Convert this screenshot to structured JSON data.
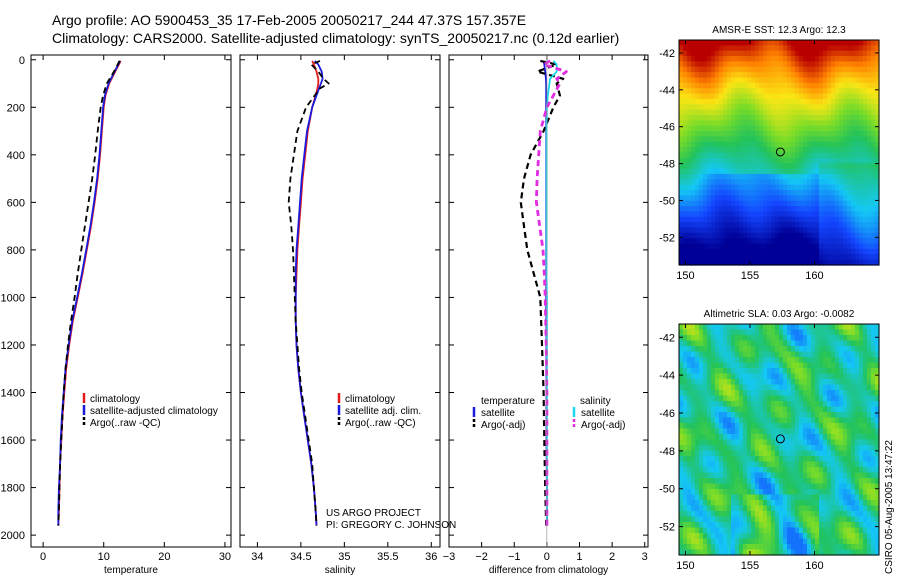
{
  "header": {
    "line1": "Argo profile: AO 5900453_35 17-Feb-2005 20050217_244 47.37S 157.357E",
    "line2": "Climatology: CARS2000. Satellite-adjusted climatology: synTS_20050217.nc (0.12d earlier)"
  },
  "colors": {
    "climatology": "#e41a1c",
    "satellite": "#1a1adc",
    "argo": "#000000",
    "salinity_satellite": "#19d8ee",
    "salinity_argo": "#e12ce1"
  },
  "chart_data": [
    {
      "type": "line",
      "id": "temperature",
      "xlabel": "temperature",
      "ylabel": "",
      "xlim": [
        -2,
        31
      ],
      "ylim": [
        2050,
        -20
      ],
      "xticks": [
        "0",
        "10",
        "20",
        "30"
      ],
      "yticks": [
        "0",
        "200",
        "400",
        "600",
        "800",
        "1000",
        "1200",
        "1400",
        "1600",
        "1800",
        "2000"
      ],
      "depth": [
        5,
        20,
        50,
        100,
        150,
        200,
        300,
        400,
        500,
        600,
        700,
        800,
        900,
        1000,
        1100,
        1200,
        1300,
        1400,
        1500,
        1600,
        1700,
        1800,
        1900,
        1960
      ],
      "series": [
        {
          "name": "climatology",
          "values": [
            12.8,
            12.5,
            11.9,
            10.9,
            10.3,
            10.0,
            9.7,
            9.4,
            9.0,
            8.5,
            7.9,
            7.2,
            6.5,
            5.7,
            4.9,
            4.3,
            3.8,
            3.5,
            3.2,
            3.0,
            2.8,
            2.7,
            2.6,
            2.5
          ]
        },
        {
          "name": "satellite-adjusted climatology",
          "values": [
            12.7,
            12.4,
            11.8,
            10.8,
            10.2,
            9.9,
            9.6,
            9.3,
            8.9,
            8.4,
            7.8,
            7.1,
            6.4,
            5.6,
            4.8,
            4.2,
            3.7,
            3.4,
            3.1,
            2.9,
            2.8,
            2.6,
            2.5,
            2.5
          ]
        },
        {
          "name": "Argo(..raw -QC)",
          "values": [
            12.6,
            12.3,
            11.7,
            10.5,
            9.9,
            9.5,
            9.0,
            8.6,
            8.1,
            7.5,
            6.9,
            6.3,
            5.7,
            5.2,
            4.6,
            4.1,
            3.7,
            3.4,
            3.2,
            3.0,
            2.8,
            2.7,
            2.6,
            2.5
          ]
        }
      ],
      "legend": [
        "climatology",
        "satellite-adjusted climatology",
        "Argo(..raw -QC)"
      ]
    },
    {
      "type": "line",
      "id": "salinity",
      "xlabel": "salinity",
      "xlim": [
        33.8,
        36.1
      ],
      "ylim": [
        2050,
        -20
      ],
      "xticks": [
        "34",
        "34.5",
        "35",
        "35.5",
        "36"
      ],
      "depth": [
        5,
        20,
        50,
        80,
        100,
        120,
        150,
        200,
        300,
        400,
        500,
        600,
        700,
        800,
        900,
        1000,
        1100,
        1200,
        1300,
        1400,
        1500,
        1600,
        1700,
        1800,
        1900,
        1960
      ],
      "series": [
        {
          "name": "climatology",
          "values": [
            34.63,
            34.65,
            34.68,
            34.7,
            34.7,
            34.69,
            34.67,
            34.63,
            34.58,
            34.55,
            34.52,
            34.5,
            34.48,
            34.46,
            34.45,
            34.44,
            34.44,
            34.45,
            34.47,
            34.5,
            34.54,
            34.58,
            34.62,
            34.65,
            34.67,
            34.68
          ]
        },
        {
          "name": "satellite adj. clim.",
          "values": [
            34.66,
            34.7,
            34.74,
            34.75,
            34.73,
            34.71,
            34.68,
            34.63,
            34.57,
            34.54,
            34.51,
            34.49,
            34.47,
            34.45,
            34.44,
            34.44,
            34.44,
            34.45,
            34.47,
            34.5,
            34.54,
            34.58,
            34.62,
            34.65,
            34.67,
            34.68
          ]
        },
        {
          "name": "Argo(..raw -QC)",
          "values": [
            34.72,
            34.62,
            34.7,
            34.76,
            34.82,
            34.72,
            34.66,
            34.56,
            34.46,
            34.42,
            34.38,
            34.36,
            34.39,
            34.41,
            34.42,
            34.43,
            34.44,
            34.46,
            34.48,
            34.51,
            34.55,
            34.59,
            34.63,
            34.65,
            34.67,
            34.68
          ]
        }
      ],
      "legend": [
        "climatology",
        "satellite adj. clim.",
        "Argo(..raw -QC)"
      ]
    },
    {
      "type": "line",
      "id": "difference",
      "xlabel": "difference from climatology",
      "xlim": [
        -3,
        3.1
      ],
      "ylim": [
        2050,
        -20
      ],
      "xticks": [
        "−3",
        "−2",
        "−1",
        "0",
        "1",
        "2",
        "3"
      ],
      "depth": [
        5,
        20,
        50,
        80,
        100,
        150,
        200,
        300,
        400,
        500,
        600,
        700,
        800,
        900,
        1000,
        1200,
        1400,
        1600,
        1800,
        1960
      ],
      "series": [
        {
          "name": "temperature satellite",
          "values": [
            -0.1,
            -0.08,
            -0.05,
            -0.03,
            -0.02,
            -0.02,
            -0.02,
            -0.02,
            -0.02,
            -0.02,
            -0.02,
            -0.02,
            -0.02,
            -0.02,
            -0.02,
            -0.01,
            -0.01,
            -0.01,
            0.0,
            0.0
          ]
        },
        {
          "name": "temperature Argo(-adj)",
          "values": [
            -0.2,
            0.3,
            -0.3,
            0.5,
            0.3,
            0.4,
            0.2,
            -0.1,
            -0.5,
            -0.7,
            -0.8,
            -0.7,
            -0.6,
            -0.4,
            -0.2,
            -0.15,
            -0.1,
            -0.08,
            -0.05,
            -0.02
          ]
        },
        {
          "name": "salinity satellite",
          "values": [
            0.2,
            0.3,
            0.3,
            0.1,
            0.08,
            0.03,
            0.0,
            -0.01,
            -0.01,
            -0.01,
            -0.01,
            -0.01,
            -0.01,
            -0.01,
            0.0,
            0.0,
            0.0,
            0.0,
            0.0,
            0.0
          ]
        },
        {
          "name": "salinity Argo(-adj)",
          "values": [
            0.1,
            -0.1,
            0.6,
            0.3,
            0.4,
            0.2,
            0.0,
            -0.2,
            -0.25,
            -0.3,
            -0.32,
            -0.22,
            -0.12,
            -0.08,
            -0.05,
            -0.02,
            0.0,
            0.0,
            0.0,
            0.0
          ]
        }
      ],
      "legend_left_title": "temperature",
      "legend_right_title": "salinity",
      "legend": [
        "satellite",
        "Argo(-adj)",
        "satellite",
        "Argo(-adj)"
      ]
    },
    {
      "type": "heatmap",
      "id": "sst",
      "title": "AMSR-E SST: 12.3 Argo: 12.3",
      "xlim": [
        149.5,
        165
      ],
      "ylim": [
        -53.5,
        -41.3
      ],
      "xticks": [
        "150",
        "155",
        "160"
      ],
      "yticks": [
        "-42",
        "-44",
        "-46",
        "-48",
        "-50",
        "-52"
      ],
      "profile_marker": {
        "lon": 157.357,
        "lat": -47.37
      }
    },
    {
      "type": "heatmap",
      "id": "sla",
      "title": "Altimetric SLA: 0.03 Argo: -0.0082",
      "xlim": [
        149.5,
        165
      ],
      "ylim": [
        -53.5,
        -41.3
      ],
      "xticks": [
        "150",
        "155",
        "160"
      ],
      "yticks": [
        "-42",
        "-44",
        "-46",
        "-48",
        "-50",
        "-52"
      ],
      "profile_marker": {
        "lon": 157.357,
        "lat": -47.37
      }
    }
  ],
  "credit": {
    "line1": "US ARGO PROJECT",
    "line2": "PI: GREGORY C. JOHNSON"
  },
  "stamp": "CSIRO 05-Aug-2005 13:47:22"
}
